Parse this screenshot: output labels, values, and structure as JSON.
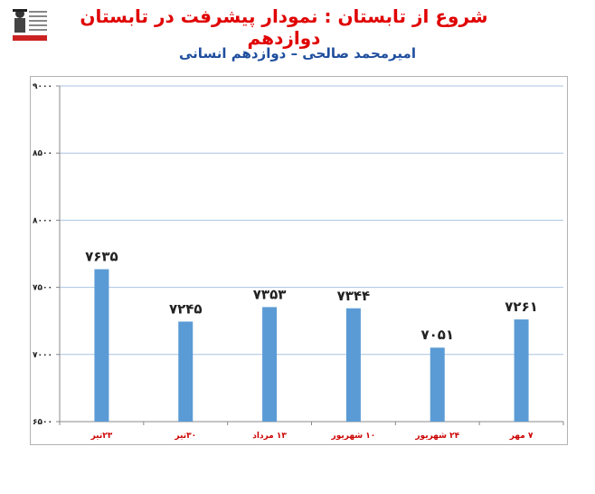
{
  "header": {
    "title": "شروع از تابستان : نمودار پیشرفت در تابستان دوازدهم",
    "subtitle": "امیرمحمد صالحی – دوازدهم انسانی"
  },
  "colors": {
    "bar": "#5b9bd5",
    "grid": "#a9c4e4",
    "title": "#e00000",
    "subtitle": "#1f4e9e",
    "category_label": "#cc0000"
  },
  "chart_data": {
    "type": "bar",
    "categories": [
      "۲۳تیر",
      "۳۰تیر",
      "۱۳ مرداد",
      "۱۰ شهریور",
      "۲۴ شهریور",
      "۷ مهر"
    ],
    "values": [
      7635,
      7245,
      7353,
      7344,
      7051,
      7261
    ],
    "data_labels": [
      "۷۶۳۵",
      "۷۲۴۵",
      "۷۳۵۳",
      "۷۳۴۴",
      "۷۰۵۱",
      "۷۲۶۱"
    ],
    "yticks": [
      6500,
      7000,
      7500,
      8000,
      8500,
      9000
    ],
    "ytick_labels": [
      "۶۵۰۰",
      "۷۰۰۰",
      "۷۵۰۰",
      "۸۰۰۰",
      "۸۵۰۰",
      "۹۰۰۰"
    ],
    "ylim": [
      6500,
      9000
    ],
    "grid": true,
    "legend": false
  }
}
